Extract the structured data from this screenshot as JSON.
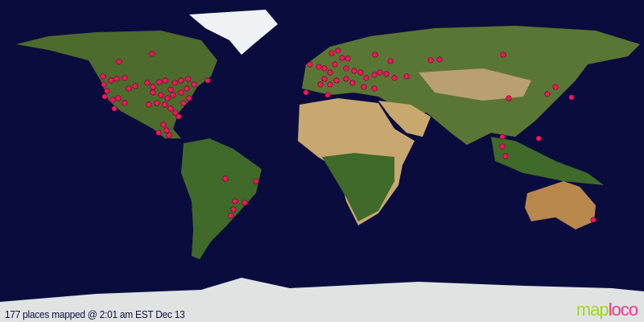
{
  "caption": "177 places mapped @ 2:01 am EST Dec 13",
  "logo": {
    "part1": "map",
    "part2": "loco"
  },
  "colors": {
    "ocean": "#0b0c3e",
    "marker": "#ff1464",
    "land_green": "#4a6a2a",
    "land_desert": "#c8a870",
    "ice": "#e8eef0"
  },
  "projection": "equirectangular",
  "markers": [
    [
      55.5,
      -113.4
    ],
    [
      59.9,
      -95
    ],
    [
      47.3,
      -122.4
    ],
    [
      45,
      -117.9
    ],
    [
      45.9,
      -114.8
    ],
    [
      46.4,
      -110.3
    ],
    [
      42.8,
      -121.9
    ],
    [
      39.2,
      -120.2
    ],
    [
      36,
      -121.5
    ],
    [
      34.2,
      -117
    ],
    [
      35.1,
      -113.9
    ],
    [
      32.4,
      -110.3
    ],
    [
      29.3,
      -116.1
    ],
    [
      40.5,
      -108
    ],
    [
      41.9,
      -104.4
    ],
    [
      43.7,
      -97.7
    ],
    [
      41.4,
      -94.5
    ],
    [
      44.1,
      -90.9
    ],
    [
      45,
      -87.6
    ],
    [
      39.9,
      -84.6
    ],
    [
      43.7,
      -82.2
    ],
    [
      45,
      -78.8
    ],
    [
      45.9,
      -74.8
    ],
    [
      42.8,
      -71.5
    ],
    [
      40.5,
      -75.6
    ],
    [
      38.3,
      -78.8
    ],
    [
      36.9,
      -83.3
    ],
    [
      35.1,
      -86.4
    ],
    [
      36.9,
      -90
    ],
    [
      38.3,
      -94.5
    ],
    [
      31.5,
      -96.8
    ],
    [
      32.4,
      -92.3
    ],
    [
      31.5,
      -87.8
    ],
    [
      29.3,
      -84.6
    ],
    [
      27,
      -81.9
    ],
    [
      24.8,
      -80.1
    ],
    [
      32.4,
      -77.4
    ],
    [
      35.1,
      -74.3
    ],
    [
      45,
      -63.9
    ],
    [
      20.3,
      -88.7
    ],
    [
      17.1,
      -86.9
    ],
    [
      14.4,
      -85.5
    ],
    [
      15.8,
      -91.4
    ],
    [
      -9.9,
      -54
    ],
    [
      -11.3,
      -36.9
    ],
    [
      -22.5,
      -48.6
    ],
    [
      -23.4,
      -43.2
    ],
    [
      -27,
      -49.5
    ],
    [
      -30.6,
      -50.9
    ],
    [
      54,
      -6.8
    ],
    [
      52.7,
      -1.8
    ],
    [
      51.8,
      1.4
    ],
    [
      60.3,
      5.4
    ],
    [
      61.7,
      9
    ],
    [
      57.6,
      11.3
    ],
    [
      57.2,
      14.4
    ],
    [
      54,
      7.2
    ],
    [
      49.5,
      4.5
    ],
    [
      45.9,
      1.4
    ],
    [
      42.8,
      -0.9
    ],
    [
      42.8,
      4.5
    ],
    [
      45,
      8.1
    ],
    [
      45.9,
      13.5
    ],
    [
      50.4,
      18
    ],
    [
      49.5,
      21.6
    ],
    [
      46.4,
      24.8
    ],
    [
      48.2,
      29.3
    ],
    [
      49.5,
      32.4
    ],
    [
      48.6,
      36
    ],
    [
      46.4,
      40.5
    ],
    [
      47.3,
      47.3
    ],
    [
      55.8,
      38.3
    ],
    [
      56.3,
      60.8
    ],
    [
      56.7,
      65.7
    ],
    [
      59.4,
      29.7
    ],
    [
      51.8,
      13.5
    ],
    [
      43.7,
      17.1
    ],
    [
      41.4,
      23.4
    ],
    [
      40.5,
      29.3
    ],
    [
      38.3,
      -9
    ],
    [
      36.9,
      3.2
    ],
    [
      59.4,
      101.3
    ],
    [
      35.1,
      104.4
    ],
    [
      37.4,
      126
    ],
    [
      35.6,
      139.5
    ],
    [
      41.4,
      130.5
    ],
    [
      13.5,
      100.8
    ],
    [
      8.1,
      100.8
    ],
    [
      2.7,
      102.6
    ],
    [
      12.6,
      121.1
    ],
    [
      -32.9,
      151.7
    ]
  ]
}
